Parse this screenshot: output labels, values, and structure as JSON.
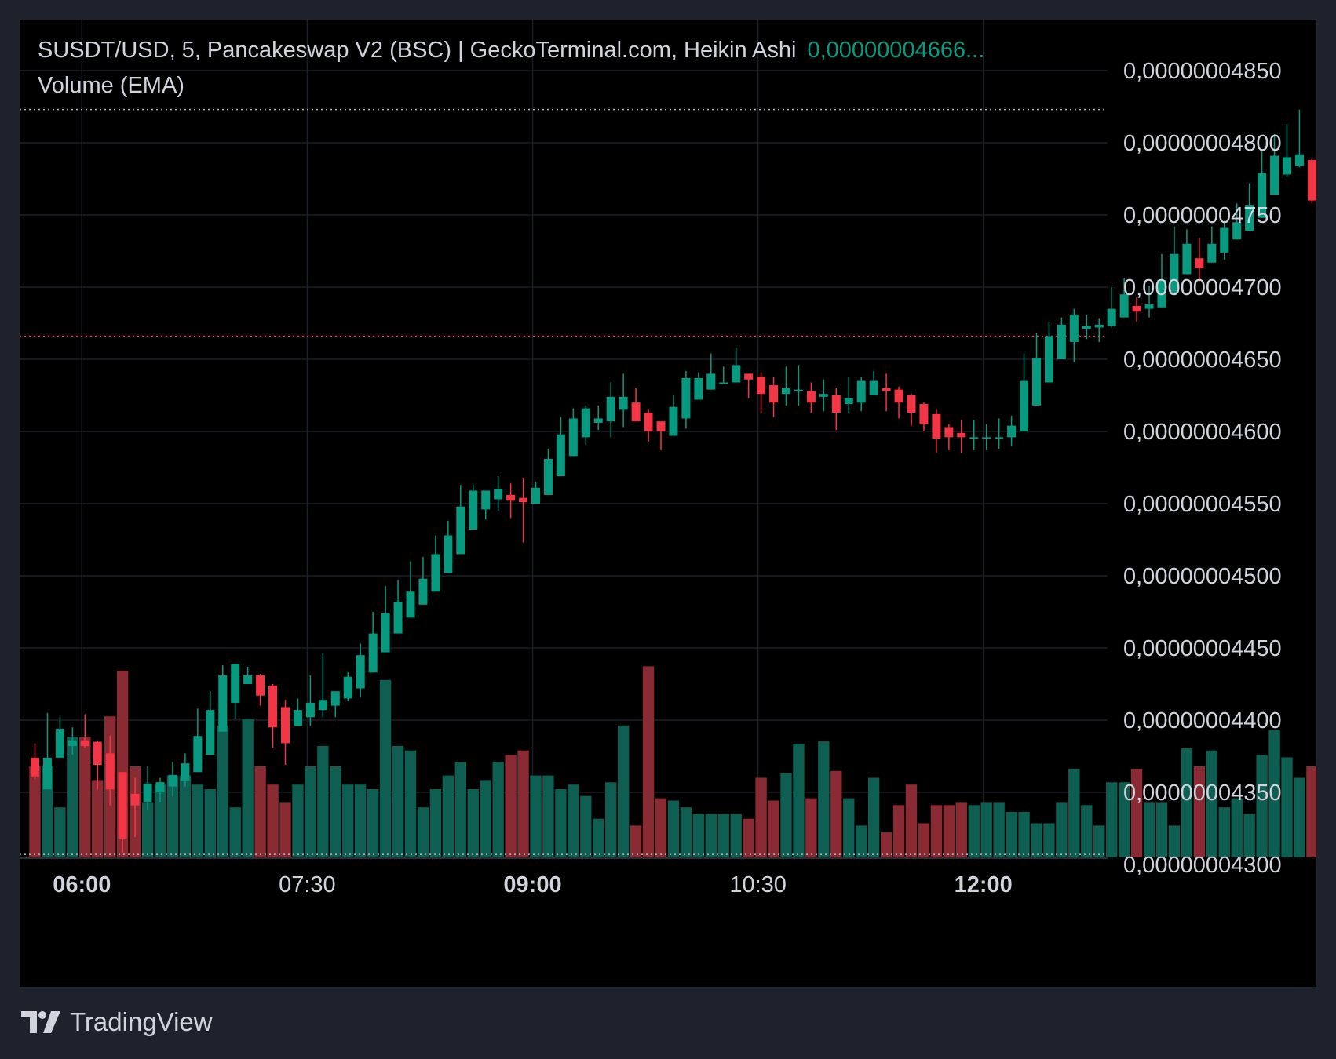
{
  "header": {
    "title": "SUSDT/USD, 5, Pancakeswap V2 (BSC) | GeckoTerminal.com, Heikin Ashi",
    "last_price": "0,00000004666...",
    "volume_label": "Volume (EMA)"
  },
  "brand": {
    "name": "TradingView",
    "logo_icon": "tradingview-logo-icon"
  },
  "colors": {
    "up": "#089981",
    "down": "#f23645",
    "vol_up": "#0e5e52",
    "vol_down": "#8a2b33",
    "background": "#000000",
    "frame": "#1e222d"
  },
  "chart_data": {
    "type": "candlestick",
    "chart_style": "Heikin Ashi",
    "y_axis": {
      "ylim": [
        4.28e-08,
        4.87e-08
      ],
      "ticks": [
        4.85e-08,
        4.8e-08,
        4.75e-08,
        4.7e-08,
        4.65e-08,
        4.6e-08,
        4.55e-08,
        4.5e-08,
        4.45e-08,
        4.4e-08,
        4.35e-08,
        4.3e-08
      ],
      "tick_labels": [
        "0,00000004850",
        "0,00000004800",
        "0,00000004750",
        "0,00000004700",
        "0,00000004650",
        "0,00000004600",
        "0,00000004550",
        "0,00000004500",
        "0,00000004450",
        "0,00000004400",
        "0,00000004350",
        "0,00000004300"
      ]
    },
    "x_axis": {
      "ticks": [
        {
          "label": "06:00",
          "index": 3.75,
          "bold": true
        },
        {
          "label": "07:30",
          "index": 21.75,
          "bold": false
        },
        {
          "label": "09:00",
          "index": 39.75,
          "bold": true
        },
        {
          "label": "10:30",
          "index": 57.75,
          "bold": false
        },
        {
          "label": "12:00",
          "index": 75.75,
          "bold": true
        }
      ]
    },
    "reference_lines": [
      {
        "name": "current-price",
        "value": 4.666e-08,
        "color": "#f23645"
      },
      {
        "name": "high",
        "value": 4.823e-08,
        "color": "#b2b5be"
      },
      {
        "name": "low",
        "value": 4.307e-08,
        "color": "#b2b5be"
      }
    ],
    "candles": [
      [
        4.374,
        4.361,
        4.384,
        4.359,
        0.4
      ],
      [
        4.352,
        4.374,
        4.405,
        4.352,
        0.4
      ],
      [
        4.374,
        4.394,
        4.402,
        4.374,
        0.22
      ],
      [
        4.382,
        4.386,
        4.395,
        4.376,
        0.53
      ],
      [
        4.386,
        4.382,
        4.404,
        4.381,
        0.53
      ],
      [
        4.385,
        4.369,
        4.386,
        4.352,
        0.34
      ],
      [
        4.377,
        4.352,
        4.389,
        4.341,
        0.62
      ],
      [
        4.364,
        4.318,
        4.364,
        4.308,
        0.82
      ],
      [
        4.349,
        4.341,
        4.36,
        4.319,
        0.4
      ],
      [
        4.343,
        4.356,
        4.368,
        4.338,
        0.24
      ],
      [
        4.35,
        4.357,
        4.36,
        4.343,
        0.32
      ],
      [
        4.354,
        4.362,
        4.371,
        4.347,
        0.36
      ],
      [
        4.358,
        4.37,
        4.377,
        4.354,
        0.36
      ],
      [
        4.364,
        4.389,
        4.408,
        4.364,
        0.32
      ],
      [
        4.376,
        4.407,
        4.42,
        4.376,
        0.3
      ],
      [
        4.392,
        4.431,
        4.438,
        4.392,
        0.58
      ],
      [
        4.412,
        4.439,
        4.439,
        4.401,
        0.22
      ],
      [
        4.425,
        4.431,
        4.437,
        4.426,
        0.61
      ],
      [
        4.431,
        4.417,
        4.432,
        4.41,
        0.4
      ],
      [
        4.424,
        4.395,
        4.425,
        4.381,
        0.32
      ],
      [
        4.409,
        4.384,
        4.414,
        4.369,
        0.24
      ],
      [
        4.396,
        4.407,
        4.415,
        4.396,
        0.32
      ],
      [
        4.402,
        4.412,
        4.431,
        4.396,
        0.4
      ],
      [
        4.407,
        4.414,
        4.446,
        4.402,
        0.49
      ],
      [
        4.41,
        4.42,
        4.42,
        4.402,
        0.4
      ],
      [
        4.415,
        4.43,
        4.433,
        4.413,
        0.32
      ],
      [
        4.422,
        4.445,
        4.453,
        4.416,
        0.32
      ],
      [
        4.433,
        4.46,
        4.475,
        4.433,
        0.3
      ],
      [
        4.447,
        4.474,
        4.493,
        4.447,
        0.78
      ],
      [
        4.46,
        4.482,
        4.497,
        4.46,
        0.49
      ],
      [
        4.471,
        4.489,
        4.51,
        4.471,
        0.47
      ],
      [
        4.48,
        4.498,
        4.513,
        4.48,
        0.22
      ],
      [
        4.489,
        4.515,
        4.528,
        4.489,
        0.3
      ],
      [
        4.502,
        4.528,
        4.538,
        4.502,
        0.36
      ],
      [
        4.515,
        4.548,
        4.563,
        4.515,
        0.42
      ],
      [
        4.532,
        4.559,
        4.563,
        4.532,
        0.3
      ],
      [
        4.546,
        4.559,
        4.559,
        4.539,
        0.34
      ],
      [
        4.553,
        4.56,
        4.569,
        4.545,
        0.42
      ],
      [
        4.556,
        4.552,
        4.564,
        4.54,
        0.45
      ],
      [
        4.554,
        4.551,
        4.568,
        4.523,
        0.47
      ],
      [
        4.55,
        4.561,
        4.565,
        4.551,
        0.36
      ],
      [
        4.556,
        4.581,
        4.588,
        4.556,
        0.36
      ],
      [
        4.569,
        4.598,
        4.61,
        4.569,
        0.3
      ],
      [
        4.583,
        4.609,
        4.616,
        4.583,
        0.32
      ],
      [
        4.596,
        4.616,
        4.618,
        4.591,
        0.27
      ],
      [
        4.606,
        4.609,
        4.618,
        4.601,
        0.17
      ],
      [
        4.607,
        4.624,
        4.634,
        4.596,
        0.33
      ],
      [
        4.615,
        4.624,
        4.64,
        4.603,
        0.58
      ],
      [
        4.62,
        4.607,
        4.63,
        4.608,
        0.14
      ],
      [
        4.613,
        4.6,
        4.615,
        4.593,
        0.84
      ],
      [
        4.607,
        4.6,
        4.603,
        4.587,
        0.26
      ],
      [
        4.597,
        4.617,
        4.625,
        4.597,
        0.25
      ],
      [
        4.609,
        4.637,
        4.642,
        4.602,
        0.22
      ],
      [
        4.622,
        4.637,
        4.641,
        4.622,
        0.19
      ],
      [
        4.629,
        4.64,
        4.654,
        4.629,
        0.19
      ],
      [
        4.634,
        4.634,
        4.645,
        4.634,
        0.19
      ],
      [
        4.634,
        4.646,
        4.658,
        4.634,
        0.19
      ],
      [
        4.64,
        4.636,
        4.638,
        4.623,
        0.17
      ],
      [
        4.638,
        4.626,
        4.641,
        4.613,
        0.35
      ],
      [
        4.632,
        4.62,
        4.638,
        4.61,
        0.25
      ],
      [
        4.626,
        4.63,
        4.645,
        4.618,
        0.37
      ],
      [
        4.628,
        4.629,
        4.646,
        4.618,
        0.5
      ],
      [
        4.628,
        4.62,
        4.634,
        4.613,
        0.26
      ],
      [
        4.624,
        4.626,
        4.636,
        4.614,
        0.51
      ],
      [
        4.625,
        4.613,
        4.63,
        4.601,
        0.38
      ],
      [
        4.619,
        4.623,
        4.638,
        4.613,
        0.26
      ],
      [
        4.62,
        4.635,
        4.638,
        4.614,
        0.14
      ],
      [
        4.625,
        4.635,
        4.642,
        4.628,
        0.35
      ],
      [
        4.63,
        4.628,
        4.64,
        4.614,
        0.11
      ],
      [
        4.629,
        4.62,
        4.631,
        4.609,
        0.23
      ],
      [
        4.625,
        4.613,
        4.626,
        4.604,
        0.32
      ],
      [
        4.619,
        4.605,
        4.62,
        4.6,
        0.15
      ],
      [
        4.612,
        4.595,
        4.615,
        4.585,
        0.23
      ],
      [
        4.603,
        4.596,
        4.605,
        4.587,
        0.23
      ],
      [
        4.599,
        4.596,
        4.608,
        4.585,
        0.24
      ],
      [
        4.596,
        4.596,
        4.608,
        4.587,
        0.23
      ],
      [
        4.596,
        4.596,
        4.605,
        4.587,
        0.24
      ],
      [
        4.596,
        4.596,
        4.609,
        4.588,
        0.24
      ],
      [
        4.596,
        4.604,
        4.611,
        4.59,
        0.2
      ],
      [
        4.6,
        4.635,
        4.654,
        4.6,
        0.2
      ],
      [
        4.618,
        4.651,
        4.668,
        4.618,
        0.15
      ],
      [
        4.634,
        4.666,
        4.676,
        4.634,
        0.15
      ],
      [
        4.65,
        4.674,
        4.679,
        4.65,
        0.24
      ],
      [
        4.662,
        4.681,
        4.685,
        4.648,
        0.39
      ],
      [
        4.671,
        4.673,
        4.681,
        4.664,
        0.23
      ],
      [
        4.672,
        4.674,
        4.678,
        4.662,
        0.14
      ],
      [
        4.673,
        4.685,
        4.7,
        4.672,
        0.33
      ],
      [
        4.679,
        4.695,
        4.706,
        4.682,
        0.33
      ],
      [
        4.687,
        4.683,
        4.693,
        4.676,
        0.39
      ],
      [
        4.685,
        4.688,
        4.701,
        4.679,
        0.24
      ],
      [
        4.686,
        4.705,
        4.723,
        4.686,
        0.24
      ],
      [
        4.696,
        4.723,
        4.742,
        4.696,
        0.14
      ],
      [
        4.709,
        4.73,
        4.74,
        4.714,
        0.48
      ],
      [
        4.72,
        4.713,
        4.734,
        4.704,
        0.4
      ],
      [
        4.717,
        4.73,
        4.742,
        4.717,
        0.47
      ],
      [
        4.724,
        4.741,
        4.746,
        4.719,
        0.22
      ],
      [
        4.733,
        4.745,
        4.758,
        4.733,
        0.26
      ],
      [
        4.739,
        4.757,
        4.772,
        4.739,
        0.19
      ],
      [
        4.748,
        4.779,
        4.794,
        4.748,
        0.45
      ],
      [
        4.764,
        4.791,
        4.806,
        4.764,
        0.56
      ],
      [
        4.778,
        4.79,
        4.813,
        4.776,
        0.44
      ],
      [
        4.784,
        4.792,
        4.823,
        4.783,
        0.35
      ],
      [
        4.788,
        4.76,
        4.789,
        4.758,
        0.4
      ]
    ],
    "candle_fields": [
      "open_e-8",
      "close_e-8",
      "high_e-8",
      "low_e-8",
      "volume_rel"
    ]
  }
}
